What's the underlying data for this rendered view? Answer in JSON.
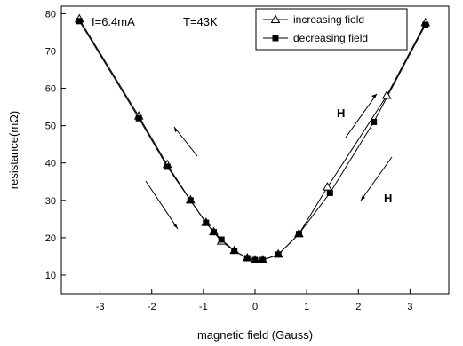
{
  "chart_data": {
    "type": "scatter",
    "title": "",
    "xlabel": "magnetic field (Gauss)",
    "ylabel": "resistance(mΩ)",
    "xlim": [
      -3.75,
      3.75
    ],
    "ylim": [
      5,
      82
    ],
    "xticks": [
      -3,
      -2,
      -1,
      0,
      1,
      2,
      3
    ],
    "yticks": [
      10,
      20,
      30,
      40,
      50,
      60,
      70,
      80
    ],
    "grid": false,
    "legend_position": "top-right",
    "annotations": [
      {
        "id": "current",
        "text": "I=6.4mA"
      },
      {
        "id": "temperature",
        "text": "T=43K"
      },
      {
        "id": "field-up",
        "text": "H"
      },
      {
        "id": "field-down",
        "text": "H"
      }
    ],
    "series": [
      {
        "name": "increasing field",
        "marker": "open-triangle",
        "color": "#000000",
        "points": [
          [
            -3.4,
            78.5
          ],
          [
            -2.25,
            52.5
          ],
          [
            -1.7,
            39.5
          ],
          [
            -1.25,
            30.0
          ],
          [
            -0.95,
            24.0
          ],
          [
            -0.8,
            21.5
          ],
          [
            -0.65,
            19.0
          ],
          [
            -0.4,
            16.5
          ],
          [
            -0.15,
            14.5
          ],
          [
            0.0,
            14.0
          ],
          [
            0.15,
            14.0
          ],
          [
            0.45,
            15.5
          ],
          [
            0.85,
            21.0
          ],
          [
            1.4,
            33.5
          ],
          [
            2.55,
            58.0
          ],
          [
            3.3,
            77.5
          ]
        ]
      },
      {
        "name": "decreasing field",
        "marker": "filled-square",
        "color": "#000000",
        "points": [
          [
            3.3,
            77.0
          ],
          [
            2.3,
            51.0
          ],
          [
            1.45,
            32.0
          ],
          [
            0.85,
            21.0
          ],
          [
            0.45,
            15.5
          ],
          [
            0.15,
            14.0
          ],
          [
            0.0,
            14.0
          ],
          [
            -0.15,
            14.5
          ],
          [
            -0.4,
            16.5
          ],
          [
            -0.65,
            19.5
          ],
          [
            -0.8,
            21.5
          ],
          [
            -0.95,
            24.0
          ],
          [
            -1.25,
            30.0
          ],
          [
            -1.7,
            39.0
          ],
          [
            -2.25,
            52.0
          ],
          [
            -3.4,
            78.0
          ]
        ]
      }
    ]
  }
}
